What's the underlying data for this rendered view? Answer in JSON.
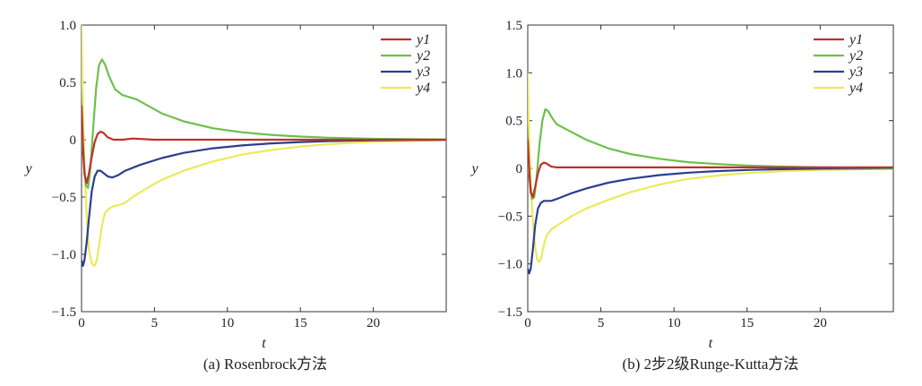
{
  "chart_data": [
    {
      "type": "line",
      "caption": "(a) Rosenbrock方法",
      "xlabel": "t",
      "ylabel": "y",
      "xlim": [
        0,
        25
      ],
      "ylim": [
        -1.5,
        1.0
      ],
      "xticks": [
        0,
        5,
        10,
        15,
        20
      ],
      "xtick_labels": [
        "0",
        "5",
        "10",
        "15",
        "20"
      ],
      "yticks": [
        -1.5,
        -1.0,
        -0.5,
        0,
        0.5,
        1.0
      ],
      "ytick_labels": [
        "−1.5",
        "−1.0",
        "−0.5",
        "0",
        "0.5",
        "1.0"
      ],
      "grid": false,
      "legend_position": "top-right",
      "series": [
        {
          "name": "y1",
          "color": "#c0302a",
          "x": [
            0,
            0.1,
            0.2,
            0.35,
            0.5,
            0.7,
            0.9,
            1.1,
            1.3,
            1.5,
            1.8,
            2.2,
            2.8,
            3.5,
            5,
            10,
            15,
            20,
            25
          ],
          "y": [
            0.3,
            -0.05,
            -0.3,
            -0.38,
            -0.3,
            -0.15,
            -0.02,
            0.05,
            0.07,
            0.06,
            0.02,
            0.0,
            0.0,
            0.01,
            0.0,
            0.0,
            0.0,
            0.0,
            0.0
          ]
        },
        {
          "name": "y2",
          "color": "#6ec04c",
          "x": [
            0,
            0.15,
            0.3,
            0.45,
            0.6,
            0.8,
            1.0,
            1.2,
            1.4,
            1.6,
            1.9,
            2.3,
            2.8,
            3.3,
            3.8,
            4.5,
            5.5,
            7,
            9,
            11,
            13,
            15,
            17,
            20,
            25
          ],
          "y": [
            0.05,
            -0.2,
            -0.4,
            -0.42,
            -0.25,
            0.1,
            0.45,
            0.65,
            0.7,
            0.66,
            0.55,
            0.44,
            0.39,
            0.37,
            0.35,
            0.3,
            0.23,
            0.16,
            0.1,
            0.065,
            0.042,
            0.027,
            0.017,
            0.008,
            0.002
          ]
        },
        {
          "name": "y3",
          "color": "#2a3f8f",
          "x": [
            0,
            0.1,
            0.2,
            0.35,
            0.5,
            0.7,
            0.9,
            1.1,
            1.3,
            1.5,
            1.8,
            2.1,
            2.5,
            3.0,
            4.0,
            5.5,
            7,
            9,
            11,
            13,
            15,
            17,
            20,
            25
          ],
          "y": [
            -1.05,
            -1.1,
            -1.05,
            -0.9,
            -0.7,
            -0.45,
            -0.32,
            -0.27,
            -0.27,
            -0.29,
            -0.32,
            -0.33,
            -0.31,
            -0.27,
            -0.22,
            -0.16,
            -0.115,
            -0.075,
            -0.05,
            -0.032,
            -0.02,
            -0.012,
            -0.005,
            0.0
          ]
        },
        {
          "name": "y4",
          "color": "#eaea5a",
          "x": [
            0,
            0.05,
            0.1,
            0.2,
            0.35,
            0.5,
            0.7,
            0.9,
            1.05,
            1.2,
            1.4,
            1.6,
            1.9,
            2.2,
            2.6,
            3.0,
            3.5,
            4.5,
            5.5,
            7,
            9,
            11,
            13,
            15,
            17,
            20,
            25
          ],
          "y": [
            1.0,
            0.6,
            0.25,
            -0.2,
            -0.65,
            -0.95,
            -1.08,
            -1.1,
            -1.05,
            -0.92,
            -0.75,
            -0.64,
            -0.6,
            -0.58,
            -0.57,
            -0.55,
            -0.5,
            -0.42,
            -0.35,
            -0.27,
            -0.19,
            -0.13,
            -0.09,
            -0.06,
            -0.038,
            -0.018,
            -0.005
          ]
        }
      ]
    },
    {
      "type": "line",
      "caption": "(b) 2步2级Runge-Kutta方法",
      "xlabel": "t",
      "ylabel": "y",
      "xlim": [
        0,
        25
      ],
      "ylim": [
        -1.5,
        1.5
      ],
      "xticks": [
        0,
        5,
        10,
        15,
        20
      ],
      "xtick_labels": [
        "0",
        "5",
        "10",
        "15",
        "20"
      ],
      "yticks": [
        -1.5,
        -1.0,
        -0.5,
        0,
        0.5,
        1.0,
        1.5
      ],
      "ytick_labels": [
        "−1.5",
        "−1.0",
        "−0.5",
        "0",
        "0.5",
        "1.0",
        "1.5"
      ],
      "grid": false,
      "legend_position": "top-right",
      "series": [
        {
          "name": "y1",
          "color": "#c0302a",
          "x": [
            0,
            0.1,
            0.2,
            0.35,
            0.5,
            0.7,
            0.9,
            1.1,
            1.3,
            1.6,
            2.0,
            3.0,
            5,
            10,
            15,
            20,
            25
          ],
          "y": [
            0.3,
            0.0,
            -0.25,
            -0.3,
            -0.2,
            -0.05,
            0.04,
            0.06,
            0.05,
            0.02,
            0.01,
            0.01,
            0.01,
            0.01,
            0.01,
            0.01,
            0.01
          ]
        },
        {
          "name": "y2",
          "color": "#6ec04c",
          "x": [
            0,
            0.15,
            0.3,
            0.45,
            0.6,
            0.8,
            1.0,
            1.2,
            1.4,
            1.7,
            2.0,
            2.5,
            3.0,
            4.0,
            5.5,
            7,
            9,
            11,
            13,
            15,
            17,
            20,
            25
          ],
          "y": [
            0.05,
            -0.15,
            -0.32,
            -0.3,
            -0.1,
            0.25,
            0.5,
            0.62,
            0.6,
            0.52,
            0.46,
            0.42,
            0.38,
            0.3,
            0.21,
            0.15,
            0.1,
            0.065,
            0.045,
            0.03,
            0.02,
            0.01,
            0.003
          ]
        },
        {
          "name": "y3",
          "color": "#2a3f8f",
          "x": [
            0,
            0.1,
            0.2,
            0.35,
            0.5,
            0.7,
            0.9,
            1.1,
            1.3,
            1.6,
            2.0,
            2.5,
            3.0,
            4.0,
            5.5,
            7,
            9,
            11,
            13,
            15,
            17,
            20,
            25
          ],
          "y": [
            -1.05,
            -1.1,
            -1.05,
            -0.85,
            -0.6,
            -0.42,
            -0.36,
            -0.34,
            -0.34,
            -0.34,
            -0.32,
            -0.29,
            -0.26,
            -0.21,
            -0.15,
            -0.11,
            -0.07,
            -0.045,
            -0.028,
            -0.017,
            -0.009,
            -0.003,
            0.0
          ]
        },
        {
          "name": "y4",
          "color": "#eaea5a",
          "x": [
            0,
            0.05,
            0.1,
            0.2,
            0.35,
            0.5,
            0.65,
            0.8,
            0.95,
            1.1,
            1.3,
            1.6,
            2.0,
            2.5,
            3.0,
            4.0,
            5.5,
            7,
            9,
            11,
            13,
            15,
            17,
            20,
            25
          ],
          "y": [
            1.0,
            0.6,
            0.3,
            -0.15,
            -0.55,
            -0.82,
            -0.96,
            -0.98,
            -0.92,
            -0.8,
            -0.7,
            -0.64,
            -0.6,
            -0.55,
            -0.5,
            -0.42,
            -0.33,
            -0.25,
            -0.17,
            -0.11,
            -0.075,
            -0.05,
            -0.032,
            -0.015,
            -0.004
          ]
        }
      ]
    }
  ]
}
